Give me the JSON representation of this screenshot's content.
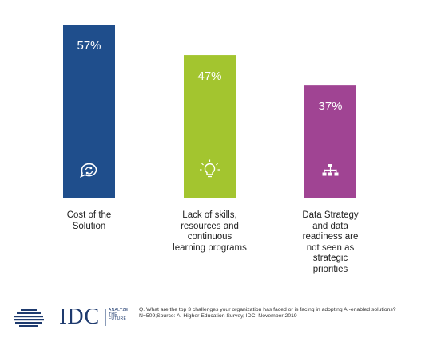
{
  "chart_data": {
    "type": "bar",
    "categories": [
      "Cost of the Solution",
      "Lack of skills, resources and continuous learning programs",
      "Data Strategy and data readiness are not seen as strategic priorities"
    ],
    "category_lines": [
      [
        "Cost of the",
        "Solution"
      ],
      [
        "Lack of skills,",
        "resources and",
        "continuous",
        "learning programs"
      ],
      [
        "Data Strategy",
        "and data",
        "readiness are",
        "not seen as",
        "strategic",
        "priorities"
      ]
    ],
    "values": [
      57,
      47,
      37
    ],
    "value_labels": [
      "57%",
      "47%",
      "37%"
    ],
    "colors": [
      "#1f4e8c",
      "#a3c52f",
      "#a04493"
    ],
    "icons": [
      "speech-bubble-refresh-icon",
      "lightbulb-icon",
      "hierarchy-icon"
    ],
    "ylim": [
      0,
      57
    ],
    "grid": false,
    "legend": "none"
  },
  "footer": {
    "logo_word": "IDC",
    "tagline": [
      "ANALYZE",
      "THE",
      "FUTURE"
    ],
    "question": "Q. What are the top 3 challenges your organization has faced or is facing in adopting AI-enabled solutions?",
    "source": "N=509;Source: AI Higher Education Survey, IDC, November 2019"
  }
}
